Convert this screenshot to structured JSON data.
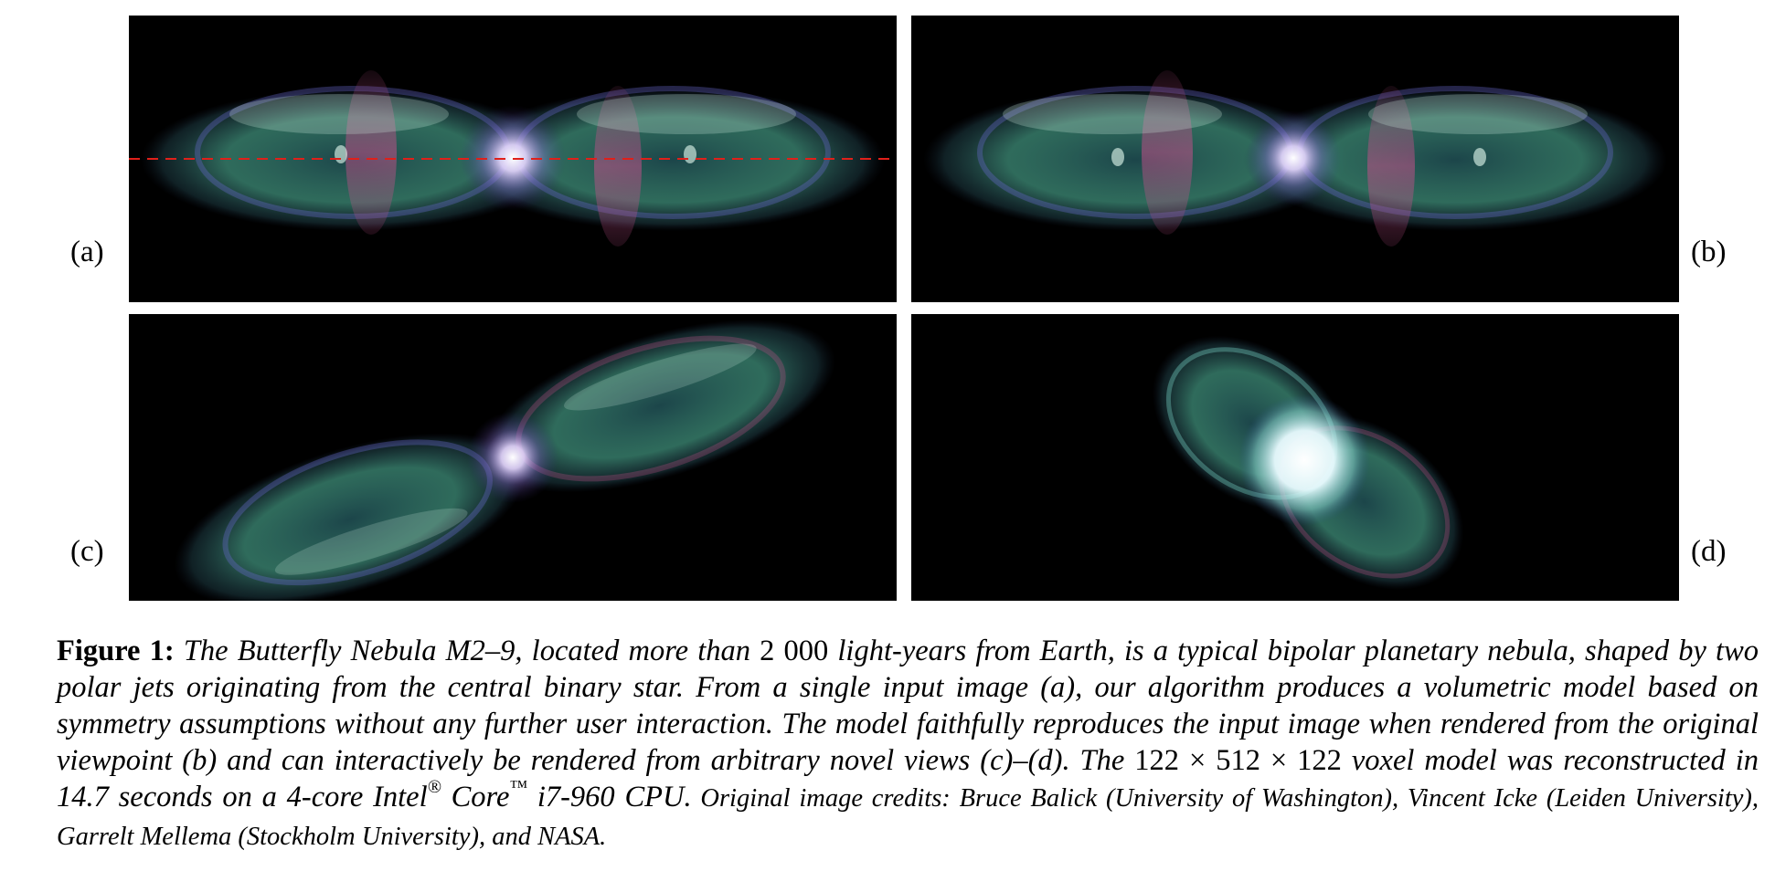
{
  "panels": [
    {
      "id": "a",
      "label": "(a)"
    },
    {
      "id": "b",
      "label": "(b)"
    },
    {
      "id": "c",
      "label": "(c)"
    },
    {
      "id": "d",
      "label": "(d)"
    }
  ],
  "caption": {
    "label": "Figure 1:",
    "part1": " The Butterfly Nebula M2–9, located more than ",
    "num1": "2 000",
    "part2": " light-years from Earth, is a typical bipolar planetary nebula, shaped by two polar jets originating from the central binary star. From a single input image (a), our algorithm produces a volumetric model based on symmetry assumptions without any further user interaction. The model faithfully reproduces the input image when rendered from the original viewpoint (b) and can interactively be rendered from arbitrary novel views (c)–(d). The ",
    "dims": "122 × 512 × 122",
    "part3": " voxel model was reconstructed in 14.7 seconds on a 4-core Intel",
    "reg": "®",
    "part4": " Core",
    "tm": "™",
    "part5": " i7-960 CPU.",
    "credits_a": " Original image",
    "credits_b": " credits: Bruce Balick (University of Washington), Vincent Icke (Leiden University), Garrelt Mellema (Stockholm University), and NASA."
  },
  "colors": {
    "background": "#000000",
    "nebula_green": "#3f8f7a",
    "nebula_pink": "#b0507c",
    "nebula_blue": "#5b64b8",
    "star": "#f4e8ff",
    "marker_line": "#e0201a"
  }
}
